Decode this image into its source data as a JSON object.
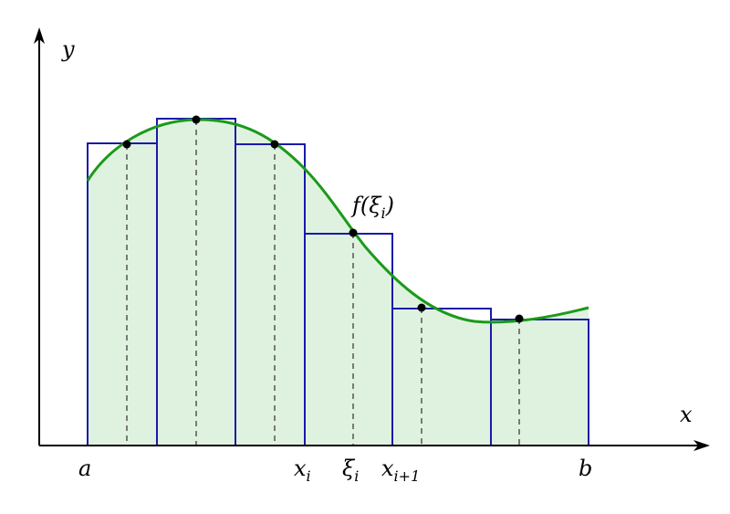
{
  "axes": {
    "x_label": "x",
    "y_label": "y"
  },
  "tick_labels": {
    "a": "a",
    "b": "b",
    "xi": {
      "main": "x",
      "sub": "i"
    },
    "xi_tag": {
      "main": "ξ",
      "sub": "i"
    },
    "xi1": {
      "main": "x",
      "sub": "i+1"
    }
  },
  "point_label": {
    "prefix": "f(ξ",
    "sub": "i",
    "suffix": ")"
  },
  "colors": {
    "curve": "#1a9a1a",
    "rect_stroke": "#1a1aaa",
    "fill": "#dff2df",
    "axis": "#000000",
    "dash": "#555555"
  }
}
